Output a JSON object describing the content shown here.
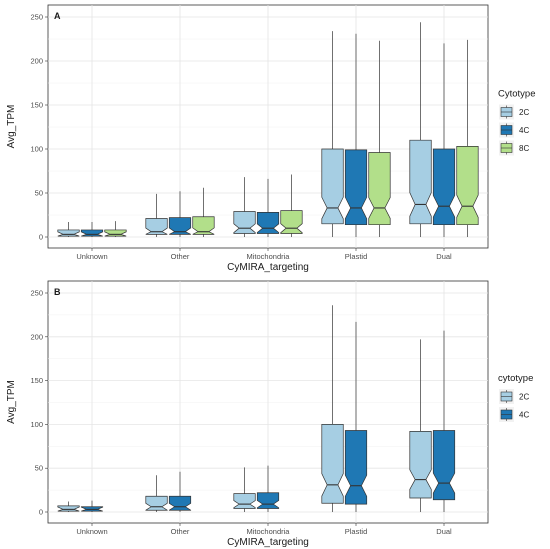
{
  "chart_data": [
    {
      "type": "boxplot",
      "panel_label": "A",
      "xlabel": "CyMIRA_targeting",
      "ylabel": "Avg_TPM",
      "ylim": [
        0,
        250
      ],
      "yticks": [
        0,
        50,
        100,
        150,
        200,
        250
      ],
      "grid": true,
      "notched": true,
      "categories": [
        "Unknown",
        "Other",
        "Mitochondria",
        "Plastid",
        "Dual"
      ],
      "legend": {
        "title": "Cytotype",
        "position": "right"
      },
      "series": [
        {
          "name": "2C",
          "color": "#a6cee3",
          "boxes": [
            {
              "min": 0,
              "q1": 1,
              "median": 3,
              "q3": 8,
              "max": 17
            },
            {
              "min": 0,
              "q1": 3,
              "median": 6,
              "q3": 21,
              "max": 49
            },
            {
              "min": 0,
              "q1": 4,
              "median": 10,
              "q3": 29,
              "max": 68
            },
            {
              "min": 0,
              "q1": 15,
              "median": 33,
              "q3": 100,
              "max": 234
            },
            {
              "min": 0,
              "q1": 15,
              "median": 37,
              "q3": 110,
              "max": 244
            }
          ]
        },
        {
          "name": "4C",
          "color": "#1f78b4",
          "boxes": [
            {
              "min": 0,
              "q1": 1,
              "median": 3,
              "q3": 8,
              "max": 17
            },
            {
              "min": 0,
              "q1": 3,
              "median": 6,
              "q3": 22,
              "max": 52
            },
            {
              "min": 0,
              "q1": 4,
              "median": 10,
              "q3": 28,
              "max": 66
            },
            {
              "min": 0,
              "q1": 14,
              "median": 33,
              "q3": 99,
              "max": 231
            },
            {
              "min": 0,
              "q1": 14,
              "median": 35,
              "q3": 100,
              "max": 220
            }
          ]
        },
        {
          "name": "8C",
          "color": "#b2df8a",
          "boxes": [
            {
              "min": 0,
              "q1": 1,
              "median": 3,
              "q3": 8,
              "max": 18
            },
            {
              "min": 0,
              "q1": 3,
              "median": 6,
              "q3": 23,
              "max": 56
            },
            {
              "min": 0,
              "q1": 4,
              "median": 10,
              "q3": 30,
              "max": 71
            },
            {
              "min": 0,
              "q1": 14,
              "median": 33,
              "q3": 96,
              "max": 223
            },
            {
              "min": 0,
              "q1": 14,
              "median": 35,
              "q3": 103,
              "max": 224
            }
          ]
        }
      ]
    },
    {
      "type": "boxplot",
      "panel_label": "B",
      "xlabel": "CyMIRA_targeting",
      "ylabel": "Avg_TPM",
      "ylim": [
        0,
        250
      ],
      "yticks": [
        0,
        50,
        100,
        150,
        200,
        250
      ],
      "grid": true,
      "notched": true,
      "categories": [
        "Unknown",
        "Other",
        "Mitochondria",
        "Plastid",
        "Dual"
      ],
      "legend": {
        "title": "cytotype",
        "position": "right"
      },
      "series": [
        {
          "name": "2C",
          "color": "#a6cee3",
          "boxes": [
            {
              "min": 0,
              "q1": 1,
              "median": 3,
              "q3": 7,
              "max": 12
            },
            {
              "min": 0,
              "q1": 2,
              "median": 6,
              "q3": 18,
              "max": 42
            },
            {
              "min": 0,
              "q1": 4,
              "median": 9,
              "q3": 21,
              "max": 51
            },
            {
              "min": 0,
              "q1": 10,
              "median": 31,
              "q3": 100,
              "max": 236
            },
            {
              "min": 0,
              "q1": 16,
              "median": 37,
              "q3": 92,
              "max": 197
            }
          ]
        },
        {
          "name": "4C",
          "color": "#1f78b4",
          "boxes": [
            {
              "min": 0,
              "q1": 1,
              "median": 3,
              "q3": 6,
              "max": 13
            },
            {
              "min": 0,
              "q1": 2,
              "median": 6,
              "q3": 18,
              "max": 46
            },
            {
              "min": 0,
              "q1": 4,
              "median": 9,
              "q3": 22,
              "max": 53
            },
            {
              "min": 0,
              "q1": 9,
              "median": 30,
              "q3": 93,
              "max": 217
            },
            {
              "min": 0,
              "q1": 14,
              "median": 33,
              "q3": 93,
              "max": 207
            }
          ]
        }
      ]
    }
  ]
}
